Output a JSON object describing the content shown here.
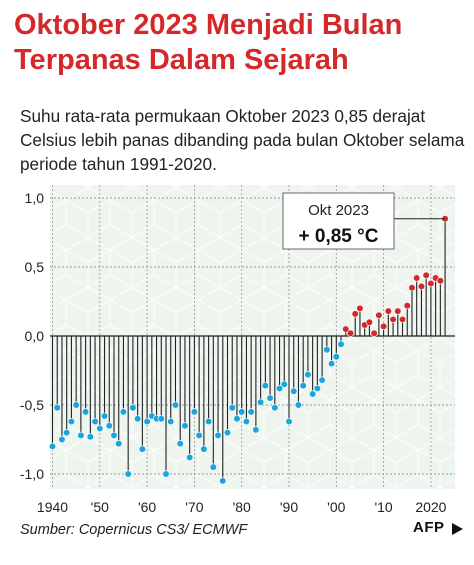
{
  "header": {
    "title_line1": "Oktober 2023 Menjadi Bulan",
    "title_line2": "Terpanas Dalam Sejarah",
    "subtitle": "Suhu rata-rata permukaan Oktober 2023 0,85 derajat Celsius lebih panas dibanding pada bulan Oktober selama periode tahun 1991-2020."
  },
  "footer": {
    "source": "Sumber: Copernicus CS3/ ECMWF",
    "logo": "AFP"
  },
  "colors": {
    "title": "#d4282a",
    "positive": "#d4282a",
    "negative": "#19a6dc",
    "stem": "#222222",
    "panel": "#eef5ef"
  },
  "chart_data": {
    "type": "lollipop",
    "x_start": 1940,
    "x_end": 2023,
    "ylim": [
      -1.1,
      1.1
    ],
    "y_ticks": [
      1.0,
      0.5,
      0.0,
      -0.5,
      -1.0
    ],
    "y_tick_labels": [
      "1,0",
      "0,5",
      "0,0",
      "-0,5",
      "-1,0"
    ],
    "x_ticks": [
      1940,
      1950,
      1960,
      1970,
      1980,
      1990,
      2000,
      2010,
      2020
    ],
    "x_tick_labels": [
      "1940",
      "'50",
      "'60",
      "'70",
      "'80",
      "'90",
      "'00",
      "'10",
      "2020"
    ],
    "values": [
      -0.8,
      -0.52,
      -0.75,
      -0.7,
      -0.62,
      -0.5,
      -0.72,
      -0.55,
      -0.73,
      -0.62,
      -0.67,
      -0.58,
      -0.65,
      -0.72,
      -0.78,
      -0.55,
      -1.0,
      -0.52,
      -0.6,
      -0.82,
      -0.62,
      -0.58,
      -0.6,
      -0.6,
      -1.0,
      -0.62,
      -0.5,
      -0.78,
      -0.65,
      -0.88,
      -0.55,
      -0.72,
      -0.82,
      -0.62,
      -0.95,
      -0.72,
      -1.05,
      -0.7,
      -0.52,
      -0.6,
      -0.55,
      -0.62,
      -0.55,
      -0.68,
      -0.48,
      -0.36,
      -0.45,
      -0.52,
      -0.38,
      -0.35,
      -0.62,
      -0.4,
      -0.5,
      -0.36,
      -0.28,
      -0.42,
      -0.38,
      -0.32,
      -0.1,
      -0.2,
      -0.15,
      -0.06,
      0.05,
      0.02,
      0.16,
      0.2,
      0.08,
      0.1,
      0.02,
      0.15,
      0.07,
      0.18,
      0.12,
      0.18,
      0.12,
      0.22,
      0.35,
      0.42,
      0.36,
      0.44,
      0.38,
      0.42,
      0.4,
      0.85
    ],
    "annotation": {
      "label": "Okt 2023",
      "value_text": "+ 0,85",
      "unit": "°C"
    }
  }
}
